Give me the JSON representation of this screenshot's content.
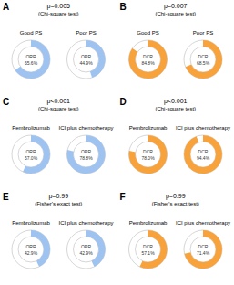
{
  "chart_data": [
    {
      "type": "pie",
      "panel_label": "A",
      "title": "p=0.005",
      "subtitle": "(Chi-square test)",
      "metric": "ORR",
      "categories": [
        "Good PS",
        "Poor PS"
      ],
      "values": [
        65.6,
        44.9
      ],
      "value_labels": [
        "65.6%",
        "44.9%"
      ],
      "color": "#9ec3f0"
    },
    {
      "type": "pie",
      "panel_label": "B",
      "title": "p=0.007",
      "subtitle": "(Chi-square test)",
      "metric": "DCR",
      "categories": [
        "Good PS",
        "Poor PS"
      ],
      "values": [
        84.8,
        68.5
      ],
      "value_labels": [
        "84.8%",
        "68.5%"
      ],
      "color": "#f7a23b"
    },
    {
      "type": "pie",
      "panel_label": "C",
      "title": "p<0.001",
      "subtitle": "(Chi-square test)",
      "metric": "ORR",
      "categories": [
        "Pembrolizumab",
        "ICI plus chemotherapy"
      ],
      "values": [
        57.0,
        78.8
      ],
      "value_labels": [
        "57.0%",
        "78.8%"
      ],
      "color": "#9ec3f0"
    },
    {
      "type": "pie",
      "panel_label": "D",
      "title": "p<0.001",
      "subtitle": "(Chi-square test)",
      "metric": "DCR",
      "categories": [
        "Pembrolizumab",
        "ICI plus chemotherapy"
      ],
      "values": [
        78.0,
        94.4
      ],
      "value_labels": [
        "78.0%",
        "94.4%"
      ],
      "color": "#f7a23b"
    },
    {
      "type": "pie",
      "panel_label": "E",
      "title": "p=0.99",
      "subtitle": "(Fisher's exact test)",
      "metric": "ORR",
      "categories": [
        "Pembrolizumab",
        "ICI plus chemotherapy"
      ],
      "values": [
        42.9,
        42.9
      ],
      "value_labels": [
        "42.9%",
        "42.9%"
      ],
      "color": "#9ec3f0"
    },
    {
      "type": "pie",
      "panel_label": "F",
      "title": "p=0.99",
      "subtitle": "(Fisher's exact test)",
      "metric": "DCR",
      "categories": [
        "Pembrolizumab",
        "ICI plus chemotherapy"
      ],
      "values": [
        57.1,
        71.4
      ],
      "value_labels": [
        "57.1%",
        "71.4%"
      ],
      "color": "#f7a23b"
    }
  ]
}
